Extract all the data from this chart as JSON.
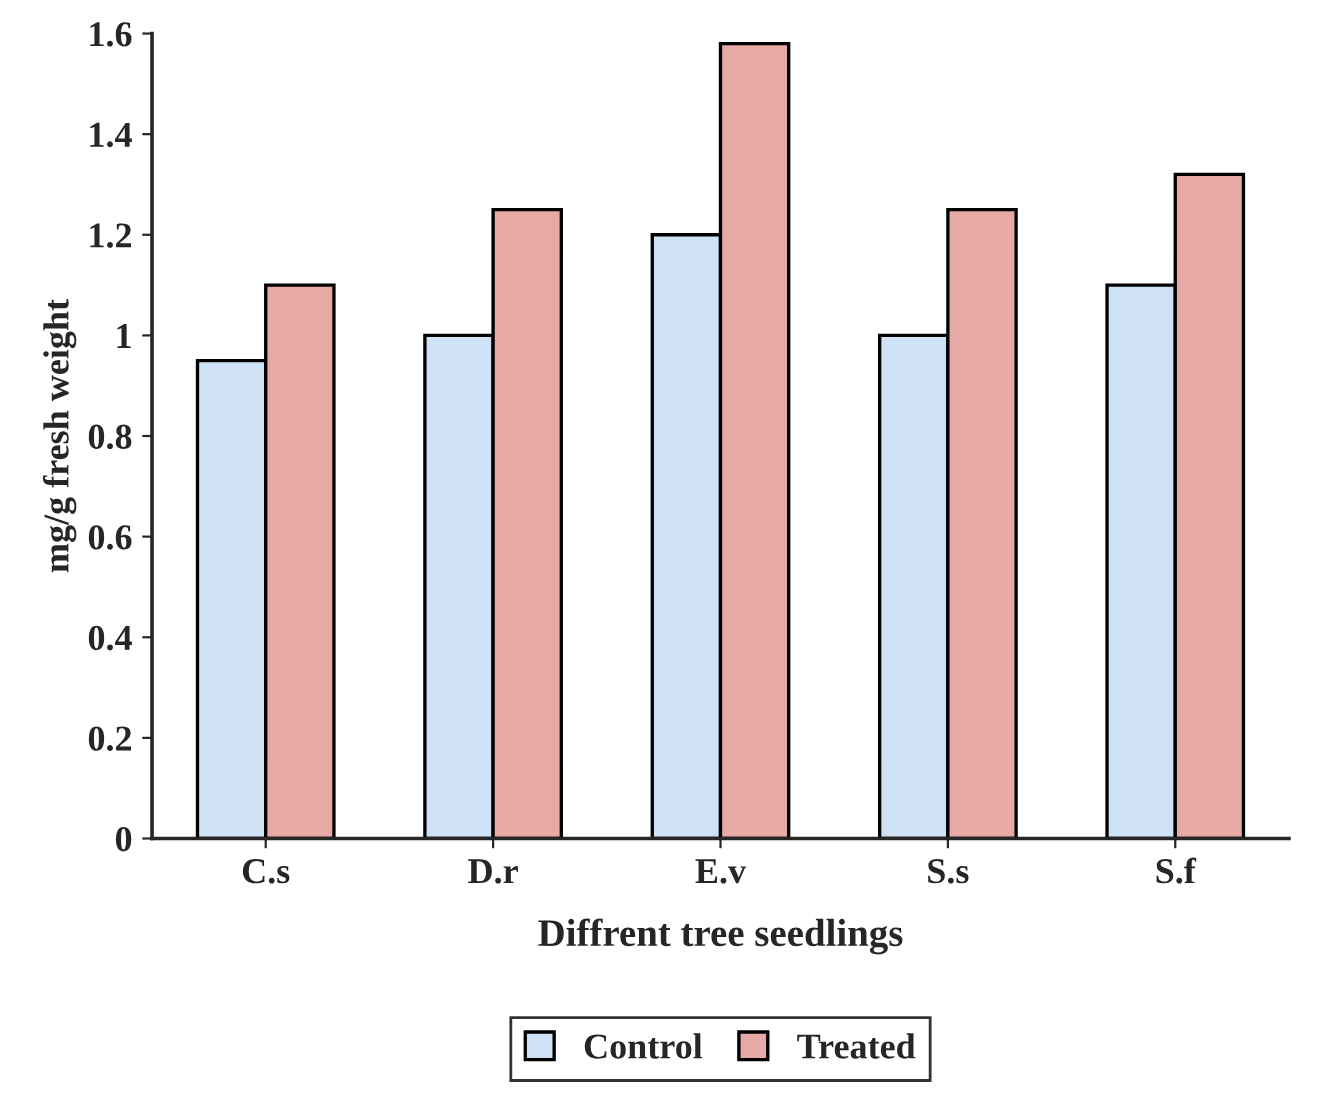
{
  "chart_data": {
    "type": "bar",
    "xlabel": "Diffrent tree seedlings",
    "ylabel": "mg/g fresh weight",
    "categories": [
      "C.s",
      "D.r",
      "E.v",
      "S.s",
      "S.f"
    ],
    "series": [
      {
        "name": "Control",
        "color": "#cfe2f5",
        "values": [
          0.95,
          1.0,
          1.2,
          1.0,
          1.1
        ]
      },
      {
        "name": "Treated",
        "color": "#e6a9a6",
        "values": [
          1.1,
          1.25,
          1.58,
          1.25,
          1.32
        ]
      }
    ],
    "ylim": [
      0,
      1.6
    ],
    "yticks": [
      0,
      0.2,
      0.4,
      0.6,
      0.8,
      1,
      1.2,
      1.4,
      1.6
    ],
    "grid": false,
    "legend": "bottom"
  }
}
